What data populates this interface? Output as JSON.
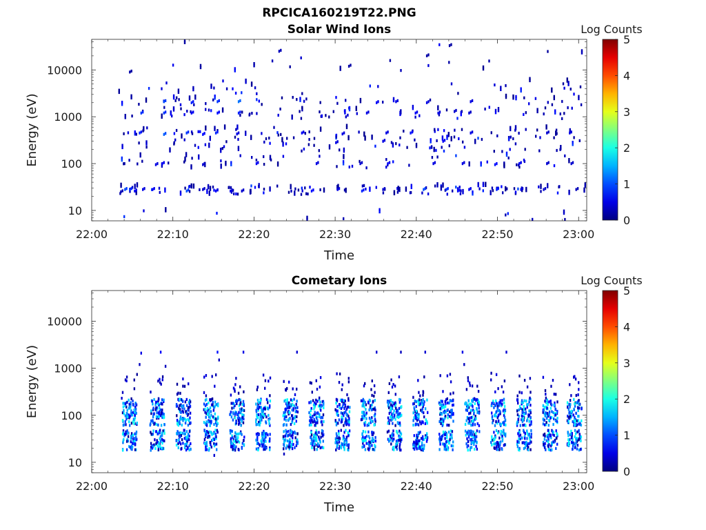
{
  "figure_title": "RPCICA160219T22.PNG",
  "chart_data": [
    {
      "type": "heatmap",
      "title": "Solar Wind Ions",
      "xlabel": "Time",
      "ylabel": "Energy (eV)",
      "x_ticks": [
        "22:00",
        "22:10",
        "22:20",
        "22:30",
        "22:40",
        "22:50",
        "23:00"
      ],
      "x_range_minutes": [
        0,
        61
      ],
      "y_scale": "log",
      "y_ticks": [
        "10",
        "100",
        "1000",
        "10000"
      ],
      "y_range": [
        6,
        45000
      ],
      "colorbar": {
        "label": "Log Counts",
        "ticks": [
          "0",
          "1",
          "2",
          "3",
          "4",
          "5"
        ],
        "range": [
          0,
          5
        ],
        "colormap": "jet"
      },
      "data_coverage_minutes": [
        3.2,
        60.8
      ],
      "cells": [
        [
          3.5,
          25,
          0.3
        ],
        [
          4.0,
          28,
          1.0
        ],
        [
          4.6,
          28,
          0.9
        ],
        [
          5.2,
          26,
          0.6
        ],
        [
          6.2,
          28,
          0.5
        ],
        [
          7.4,
          28,
          0.6
        ],
        [
          11.6,
          26,
          1.0
        ],
        [
          13.6,
          28,
          0.4
        ],
        [
          15.2,
          26,
          0.6
        ],
        [
          17.0,
          26,
          0.5
        ],
        [
          18.4,
          26,
          0.4
        ],
        [
          27.0,
          26,
          0.7
        ],
        [
          30.2,
          28,
          0.5
        ],
        [
          33.2,
          26,
          0.8
        ],
        [
          35.8,
          28,
          0.4
        ],
        [
          40.8,
          28,
          1.0
        ],
        [
          43.6,
          28,
          0.9
        ],
        [
          46.4,
          28,
          0.6
        ],
        [
          49.8,
          28,
          0.8
        ],
        [
          52.8,
          28,
          0.5
        ],
        [
          55.6,
          28,
          0.4
        ],
        [
          59.6,
          28,
          0.3
        ],
        [
          5.8,
          450,
          0.8
        ],
        [
          8.8,
          420,
          1.1
        ],
        [
          11.6,
          450,
          0.9
        ],
        [
          13.6,
          420,
          0.7
        ],
        [
          15.2,
          450,
          0.8
        ],
        [
          17.8,
          430,
          0.5
        ],
        [
          25.8,
          450,
          0.6
        ],
        [
          30.8,
          430,
          0.5
        ],
        [
          36.2,
          450,
          0.5
        ],
        [
          39.2,
          450,
          0.7
        ],
        [
          46.6,
          450,
          0.5
        ],
        [
          56.0,
          450,
          0.4
        ],
        [
          58.8,
          450,
          0.5
        ],
        [
          8.8,
          2100,
          1.0
        ],
        [
          12.2,
          2000,
          0.8
        ],
        [
          15.4,
          2100,
          0.9
        ],
        [
          18.0,
          2100,
          1.2
        ],
        [
          35.0,
          2000,
          0.6
        ],
        [
          37.4,
          2100,
          0.5
        ],
        [
          41.2,
          2000,
          0.5
        ],
        [
          44.6,
          1300,
          0.4
        ],
        [
          46.6,
          2100,
          0.5
        ],
        [
          6.0,
          1200,
          0.9
        ],
        [
          8.8,
          1200,
          0.9
        ],
        [
          12.2,
          1200,
          0.6
        ],
        [
          15.4,
          1200,
          0.7
        ],
        [
          18.0,
          1200,
          0.8
        ],
        [
          33.8,
          1200,
          0.5
        ],
        [
          39.8,
          1200,
          0.6
        ],
        [
          42.6,
          1200,
          0.5
        ],
        [
          46.4,
          1200,
          0.4
        ],
        [
          7.8,
          95,
          0.5
        ],
        [
          8.6,
          100,
          0.6
        ],
        [
          13.6,
          95,
          0.4
        ],
        [
          20.2,
          100,
          0.6
        ],
        [
          27.6,
          100,
          0.5
        ],
        [
          33.0,
          100,
          0.4
        ],
        [
          36.4,
          100,
          0.6
        ],
        [
          42.0,
          100,
          0.5
        ],
        [
          45.6,
          100,
          0.5
        ],
        [
          49.6,
          95,
          0.7
        ],
        [
          52.6,
          100,
          0.6
        ],
        [
          56.0,
          100,
          0.4
        ],
        [
          59.0,
          100,
          0.4
        ],
        [
          30.0,
          280,
          0.5
        ],
        [
          35.8,
          300,
          0.5
        ],
        [
          43.2,
          300,
          0.6
        ],
        [
          23.0,
          25000,
          0.3
        ],
        [
          41.2,
          20000,
          0.2
        ],
        [
          44.0,
          33000,
          0.2
        ],
        [
          31.6,
          12000,
          0.2
        ],
        [
          4.6,
          9000,
          0.2
        ]
      ]
    },
    {
      "type": "heatmap",
      "title": "Cometary Ions",
      "xlabel": "Time",
      "ylabel": "Energy (eV)",
      "x_ticks": [
        "22:00",
        "22:10",
        "22:20",
        "22:30",
        "22:40",
        "22:50",
        "23:00"
      ],
      "x_range_minutes": [
        0,
        61
      ],
      "y_scale": "log",
      "y_ticks": [
        "10",
        "100",
        "1000",
        "10000"
      ],
      "y_range": [
        6,
        45000
      ],
      "colorbar": {
        "label": "Log Counts",
        "ticks": [
          "0",
          "1",
          "2",
          "3",
          "4",
          "5"
        ],
        "range": [
          0,
          5
        ],
        "colormap": "jet"
      },
      "data_coverage_minutes": [
        3.2,
        60.8
      ],
      "pulse_centers_minutes": [
        4.6,
        8.0,
        11.2,
        14.6,
        17.8,
        21.0,
        24.4,
        27.6,
        30.8,
        34.0,
        37.2,
        40.4,
        43.6,
        46.8,
        50.0,
        53.2,
        56.4,
        59.4
      ],
      "band_low_eV": [
        18,
        48
      ],
      "band_high_eV": [
        60,
        220
      ],
      "peak_log_counts": 1.9,
      "cells": [
        [
          4.8,
          22,
          1.2
        ],
        [
          5.0,
          38,
          1.9
        ],
        [
          8.2,
          25,
          1.7
        ],
        [
          8.6,
          42,
          1.5
        ],
        [
          11.4,
          24,
          1.5
        ],
        [
          14.8,
          30,
          1.8
        ],
        [
          18.0,
          40,
          1.7
        ],
        [
          21.2,
          36,
          1.6
        ],
        [
          24.6,
          28,
          1.8
        ],
        [
          27.8,
          24,
          1.4
        ],
        [
          31.0,
          26,
          1.5
        ],
        [
          34.2,
          22,
          1.4
        ],
        [
          37.4,
          24,
          1.6
        ],
        [
          40.6,
          26,
          1.5
        ],
        [
          43.8,
          28,
          1.7
        ],
        [
          47.0,
          24,
          1.4
        ],
        [
          50.2,
          26,
          1.6
        ],
        [
          53.4,
          24,
          1.5
        ],
        [
          56.6,
          26,
          1.4
        ],
        [
          59.6,
          30,
          1.3
        ],
        [
          5.4,
          110,
          1.3
        ],
        [
          8.4,
          130,
          1.0
        ],
        [
          11.6,
          110,
          1.1
        ],
        [
          14.6,
          120,
          1.2
        ],
        [
          17.6,
          110,
          1.0
        ],
        [
          21.0,
          120,
          1.3
        ],
        [
          24.6,
          130,
          1.2
        ],
        [
          27.8,
          110,
          1.0
        ],
        [
          31.2,
          120,
          1.0
        ],
        [
          34.4,
          130,
          1.1
        ],
        [
          37.6,
          110,
          1.2
        ],
        [
          40.6,
          120,
          1.1
        ],
        [
          43.8,
          130,
          1.2
        ],
        [
          47.0,
          110,
          1.1
        ],
        [
          50.2,
          120,
          1.2
        ],
        [
          53.4,
          110,
          1.0
        ],
        [
          56.6,
          120,
          1.1
        ],
        [
          59.6,
          110,
          1.0
        ],
        [
          6.0,
          2100,
          0.5
        ],
        [
          8.4,
          2200,
          0.6
        ],
        [
          15.4,
          2200,
          0.7
        ],
        [
          18.6,
          2200,
          0.5
        ],
        [
          25.2,
          2200,
          0.4
        ],
        [
          35.0,
          2200,
          0.4
        ],
        [
          38.0,
          2200,
          0.3
        ],
        [
          41.0,
          2200,
          0.4
        ],
        [
          45.6,
          2200,
          0.5
        ],
        [
          51.0,
          2200,
          0.4
        ],
        [
          5.8,
          1200,
          0.3
        ],
        [
          15.6,
          1500,
          0.3
        ],
        [
          45.8,
          1200,
          0.3
        ],
        [
          9.0,
          1100,
          0.3
        ],
        [
          17.6,
          450,
          0.4
        ],
        [
          30.4,
          500,
          0.3
        ],
        [
          46.8,
          420,
          0.3
        ],
        [
          53.6,
          400,
          0.3
        ],
        [
          58.8,
          450,
          0.3
        ],
        [
          15.0,
          14,
          0.4
        ],
        [
          23.6,
          15,
          0.3
        ],
        [
          3.6,
          230,
          0.4
        ]
      ]
    }
  ]
}
